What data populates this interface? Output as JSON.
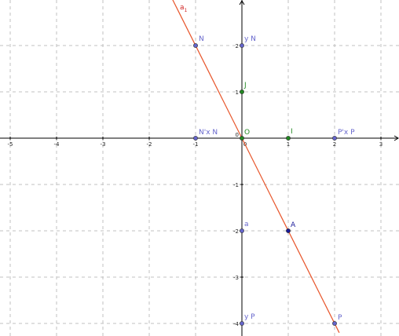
{
  "axes": {
    "x_ticks": [
      "-5",
      "-4",
      "-3",
      "-2",
      "-1",
      "0",
      "1",
      "2",
      "3"
    ],
    "y_ticks": [
      "2",
      "1",
      "0",
      "-1",
      "-2",
      "-3",
      "-4"
    ],
    "x_range": [
      -5.2,
      3.3
    ],
    "y_range": [
      -4.2,
      2.9
    ],
    "grid": true
  },
  "line": {
    "label": "a",
    "subscript": "1",
    "color": "#e8552a",
    "from": [
      -1.5,
      3.0
    ],
    "to": [
      2.1,
      -4.2
    ]
  },
  "points": [
    {
      "label": "N",
      "x": -1,
      "y": 2,
      "color": "#6666cc"
    },
    {
      "label": "y N",
      "x": 0,
      "y": 2,
      "color": "#6666cc"
    },
    {
      "label": "J",
      "x": 0,
      "y": 1,
      "color": "#228822"
    },
    {
      "label": "O",
      "x": 0,
      "y": 0,
      "color": "#228822"
    },
    {
      "label": "I",
      "x": 1,
      "y": 0,
      "color": "#228822"
    },
    {
      "label": "N'x N",
      "x": -1,
      "y": 0,
      "color": "#6666cc"
    },
    {
      "label": "P'x P",
      "x": 2,
      "y": 0,
      "color": "#6666cc"
    },
    {
      "label": "a",
      "x": 0,
      "y": -2,
      "color": "#6666cc"
    },
    {
      "label": "A",
      "x": 1,
      "y": -2,
      "color": "#1a1a99"
    },
    {
      "label": "y P",
      "x": 0,
      "y": -4,
      "color": "#6666cc"
    },
    {
      "label": "P",
      "x": 2,
      "y": -4,
      "color": "#6666cc"
    }
  ]
}
